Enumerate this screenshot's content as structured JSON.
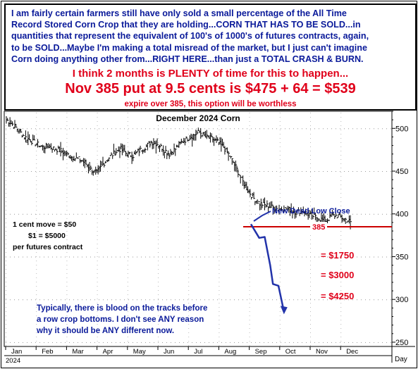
{
  "header": {
    "commentary_lines": [
      "I am fairly certain farmers still have only sold a small percentage of the All Time",
      "Record Stored Corn Crop that they are holding...CORN THAT HAS TO BE SOLD...in",
      "quantities that represent the equivalent of 100's of 1000's of futures contracts, again,",
      "to be SOLD...Maybe I'm making a total misread of the market, but I just can't imagine",
      "Corn doing anything other from...RIGHT HERE...than just a TOTAL CRASH & BURN."
    ],
    "timing_line": "I think 2 months is PLENTY of time for this to happen...",
    "trade_line": "Nov 385 put at 9.5 cents is $475 + 64 = $539",
    "expiry_line": "expire over 385, this option will be worthless"
  },
  "chart_data": {
    "type": "bar",
    "title": "December 2024 Corn",
    "x_axis": {
      "months": [
        "Jan",
        "Feb",
        "Mar",
        "Apr",
        "May",
        "Jun",
        "Jul",
        "Aug",
        "Sep",
        "Oct",
        "Nov",
        "Dec"
      ],
      "year_label": "2024",
      "period_label": "Day"
    },
    "y_axis": {
      "ticks": [
        250,
        300,
        350,
        400,
        450,
        500
      ],
      "range": [
        245,
        520
      ]
    },
    "weekly_closes": [
      510,
      505,
      498,
      490,
      486,
      482,
      478,
      479,
      476,
      474,
      470,
      466,
      464,
      460,
      452,
      448,
      458,
      466,
      472,
      476,
      470,
      468,
      474,
      478,
      484,
      482,
      476,
      470,
      476,
      484,
      488,
      492,
      496,
      490,
      488,
      484,
      478,
      468,
      455,
      440,
      428,
      418,
      412,
      410,
      408,
      406,
      406,
      405,
      402,
      404,
      400,
      397,
      394,
      392,
      398,
      398,
      394,
      391
    ],
    "strike_line": {
      "value": 385,
      "label": "385",
      "color": "#cc0000"
    },
    "projection_path": [
      [
        0,
        388
      ],
      [
        3,
        372
      ],
      [
        5,
        373
      ],
      [
        7,
        340
      ],
      [
        8,
        318
      ],
      [
        10,
        316
      ],
      [
        12,
        286
      ]
    ],
    "annotations": {
      "new_low": "New Dead Low Close",
      "tick_value": [
        "1 cent move = $50",
        "$1 = $5000",
        "per futures contract"
      ],
      "profit_levels": [
        {
          "text": "= $1750",
          "level": 350
        },
        {
          "text": "= $3000",
          "level": 325
        },
        {
          "text": "= $4250",
          "level": 300
        }
      ],
      "closing_note": [
        "Typically, there is blood on the tracks before",
        "a row crop bottoms. I don't see ANY reason",
        "why it should be ANY different now."
      ]
    },
    "colors": {
      "bars": "#000000",
      "text_blue": "#0a1a9a",
      "text_red": "#e0001a",
      "projection": "#2233aa"
    }
  }
}
